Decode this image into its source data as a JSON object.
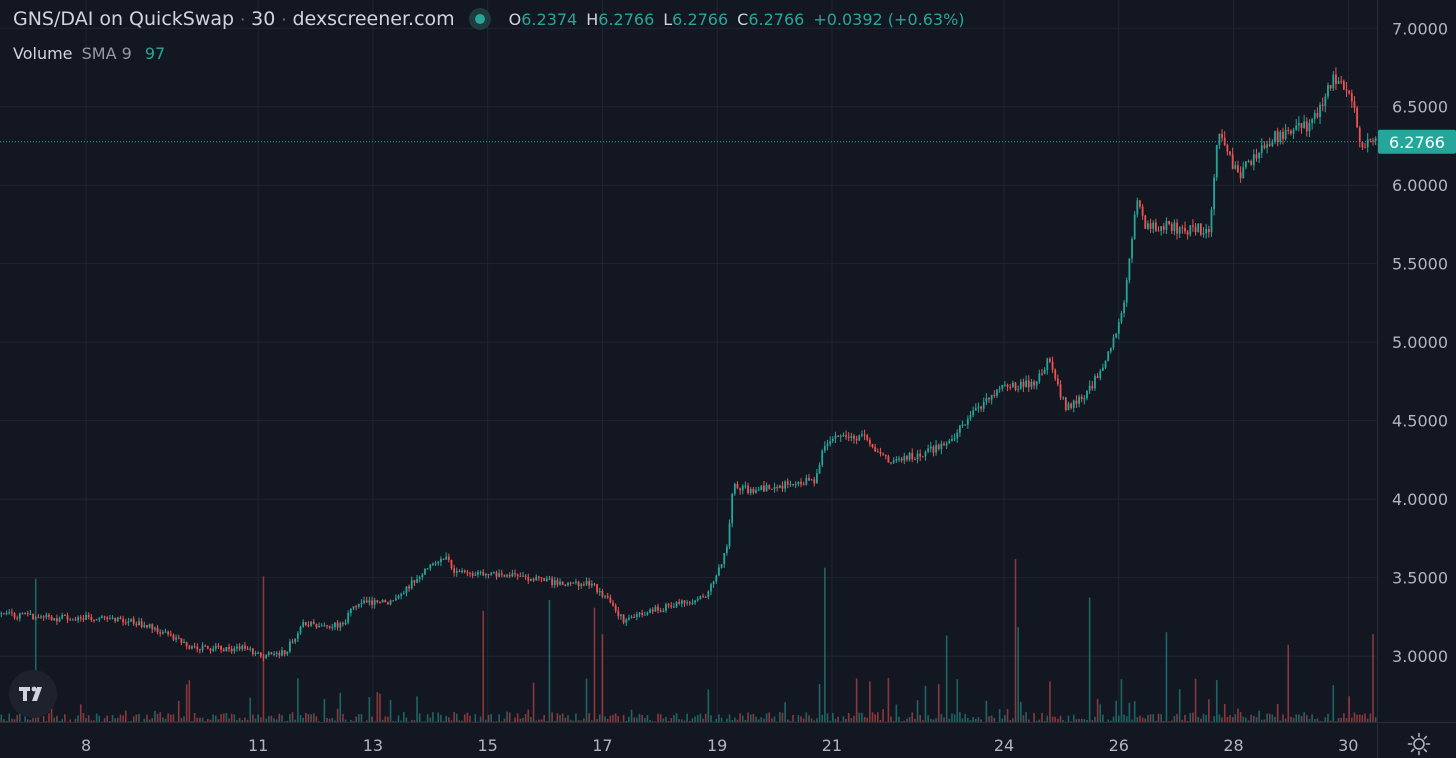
{
  "header": {
    "symbol": "GNS/DAI on QuickSwap",
    "interval": "30",
    "source": "dexscreener.com",
    "ohlc": [
      {
        "k": "O",
        "v": "6.2374"
      },
      {
        "k": "H",
        "v": "6.2766"
      },
      {
        "k": "L",
        "v": "6.2766"
      },
      {
        "k": "C",
        "v": "6.2766"
      }
    ],
    "change": "+0.0392 (+0.63%)"
  },
  "volume_legend": {
    "label": "Volume",
    "indicator": "SMA 9",
    "value": "97"
  },
  "icons": {
    "logo": "tradingview-logo-icon",
    "settings": "gear-icon"
  },
  "colors": {
    "background": "#131722",
    "up": "#26a69a",
    "down": "#ef5350",
    "grid": "#1f2533",
    "axis_text": "#b2b5be",
    "price_tag": "#26a69a"
  },
  "chart_data": {
    "type": "candlestick",
    "y_axis": {
      "side": "right",
      "ticks": [
        "7.0000",
        "6.5000",
        "6.0000",
        "5.5000",
        "5.0000",
        "4.5000",
        "4.0000",
        "3.5000",
        "3.0000"
      ],
      "tick_values": [
        7.0,
        6.5,
        6.0,
        5.5,
        5.0,
        4.5,
        4.0,
        3.5,
        3.0
      ],
      "ylim": [
        2.58,
        7.18
      ]
    },
    "x_axis": {
      "ticks": [
        "8",
        "11",
        "13",
        "15",
        "17",
        "19",
        "21",
        "24",
        "26",
        "28",
        "30"
      ],
      "tick_values": [
        1.5,
        4.5,
        6.5,
        8.5,
        10.5,
        12.5,
        14.5,
        17.5,
        19.5,
        21.5,
        23.5
      ]
    },
    "x_range": [
      0,
      24.0
    ],
    "last_price": {
      "value": 6.2766,
      "label": "6.2766"
    },
    "grid": true,
    "price_path": [
      [
        0.0,
        3.27
      ],
      [
        1.0,
        3.24
      ],
      [
        1.6,
        3.25
      ],
      [
        2.1,
        3.24
      ],
      [
        2.7,
        3.18
      ],
      [
        3.0,
        3.12
      ],
      [
        3.4,
        3.05
      ],
      [
        3.9,
        3.05
      ],
      [
        4.3,
        3.05
      ],
      [
        4.6,
        3.0
      ],
      [
        5.0,
        3.03
      ],
      [
        5.3,
        3.2
      ],
      [
        6.0,
        3.2
      ],
      [
        6.2,
        3.33
      ],
      [
        6.8,
        3.35
      ],
      [
        7.1,
        3.43
      ],
      [
        7.5,
        3.57
      ],
      [
        7.8,
        3.65
      ],
      [
        7.9,
        3.55
      ],
      [
        8.4,
        3.52
      ],
      [
        9.3,
        3.5
      ],
      [
        9.8,
        3.46
      ],
      [
        10.3,
        3.46
      ],
      [
        10.6,
        3.38
      ],
      [
        10.9,
        3.22
      ],
      [
        11.3,
        3.28
      ],
      [
        12.0,
        3.35
      ],
      [
        12.3,
        3.38
      ],
      [
        12.5,
        3.5
      ],
      [
        12.7,
        3.7
      ],
      [
        12.8,
        4.1
      ],
      [
        13.1,
        4.05
      ],
      [
        13.6,
        4.08
      ],
      [
        14.0,
        4.12
      ],
      [
        14.2,
        4.1
      ],
      [
        14.4,
        4.35
      ],
      [
        14.7,
        4.43
      ],
      [
        15.1,
        4.38
      ],
      [
        15.3,
        4.28
      ],
      [
        15.6,
        4.25
      ],
      [
        16.0,
        4.28
      ],
      [
        16.3,
        4.32
      ],
      [
        16.6,
        4.38
      ],
      [
        16.9,
        4.5
      ],
      [
        17.3,
        4.68
      ],
      [
        17.7,
        4.72
      ],
      [
        18.1,
        4.75
      ],
      [
        18.3,
        4.88
      ],
      [
        18.6,
        4.58
      ],
      [
        18.9,
        4.66
      ],
      [
        19.2,
        4.8
      ],
      [
        19.4,
        5.0
      ],
      [
        19.6,
        5.2
      ],
      [
        19.7,
        5.5
      ],
      [
        19.85,
        5.95
      ],
      [
        20.0,
        5.72
      ],
      [
        20.3,
        5.75
      ],
      [
        20.6,
        5.72
      ],
      [
        20.9,
        5.72
      ],
      [
        21.1,
        5.72
      ],
      [
        21.25,
        6.35
      ],
      [
        21.4,
        6.25
      ],
      [
        21.6,
        6.05
      ],
      [
        21.9,
        6.2
      ],
      [
        22.2,
        6.3
      ],
      [
        22.5,
        6.35
      ],
      [
        22.8,
        6.38
      ],
      [
        23.0,
        6.45
      ],
      [
        23.2,
        6.65
      ],
      [
        23.35,
        6.7
      ],
      [
        23.6,
        6.55
      ],
      [
        23.75,
        6.25
      ],
      [
        24.0,
        6.2766
      ]
    ]
  }
}
